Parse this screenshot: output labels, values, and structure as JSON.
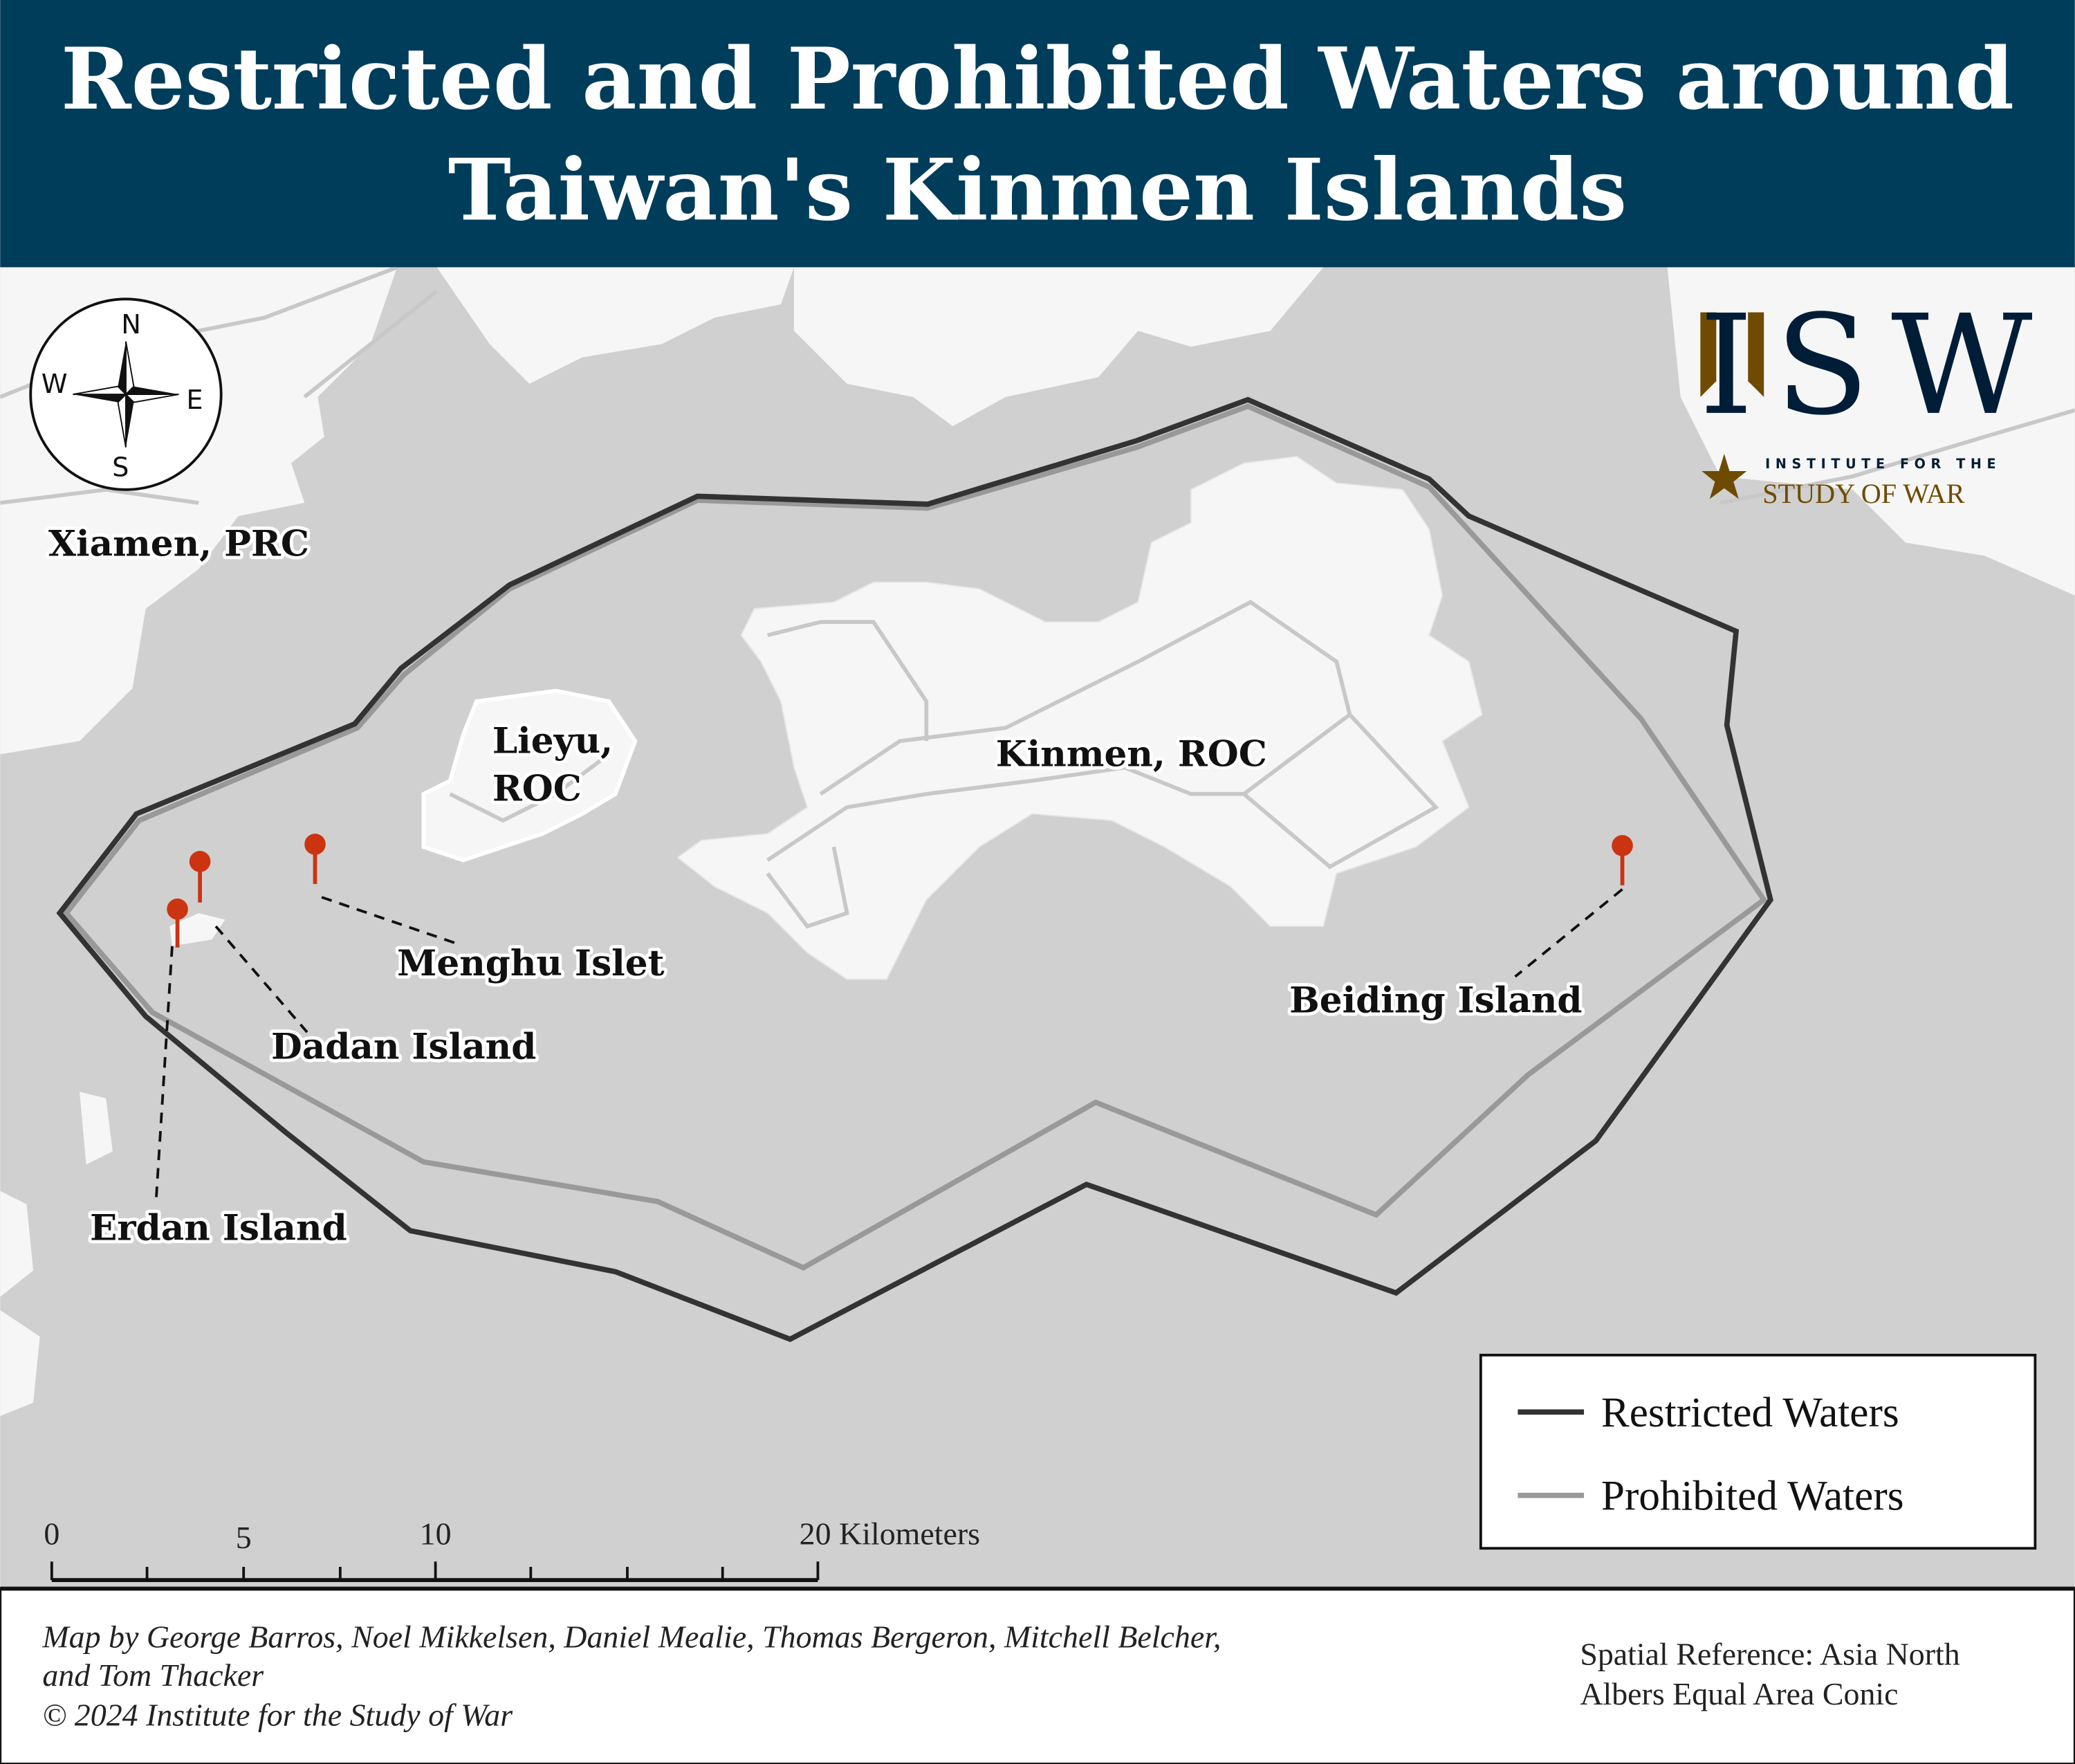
{
  "header": {
    "title_line1": "Restricted and Prohibited Waters around",
    "title_line2": "Taiwan's Kinmen Islands",
    "background": "#003d5b"
  },
  "map": {
    "water_color": "#d0d0d0",
    "land_color": "#f6f6f6",
    "labels": {
      "xiamen": "Xiamen, PRC",
      "lieyu_1": "Lieyu,",
      "lieyu_2": "ROC",
      "kinmen": "Kinmen, ROC",
      "menghu": "Menghu Islet",
      "dadan": "Dadan Island",
      "erdan": "Erdan Island",
      "beiding": "Beiding Island"
    },
    "pin_color": "#cc3311",
    "compass": {
      "n": "N",
      "s": "S",
      "e": "E",
      "w": "W"
    }
  },
  "logo": {
    "letters": "ISW",
    "line1": "INSTITUTE FOR THE",
    "line2": "STUDY OF WAR",
    "navy": "#001d38",
    "gold": "#6e4b00"
  },
  "legend": {
    "items": [
      {
        "label": "Restricted Waters",
        "color": "#333333"
      },
      {
        "label": "Prohibited Waters",
        "color": "#999999"
      }
    ]
  },
  "scale_bar": {
    "ticks": [
      "0",
      "5",
      "10",
      "20 Kilometers"
    ]
  },
  "footer": {
    "credit_line1": "Map by George Barros, Noel Mikkelsen, Daniel Mealie, Thomas Bergeron, Mitchell Belcher,",
    "credit_line2": "and Tom Thacker",
    "copyright": "© 2024 Institute for the Study of War",
    "spatial_ref_line1": "Spatial Reference: Asia North",
    "spatial_ref_line2": "Albers Equal Area Conic"
  }
}
